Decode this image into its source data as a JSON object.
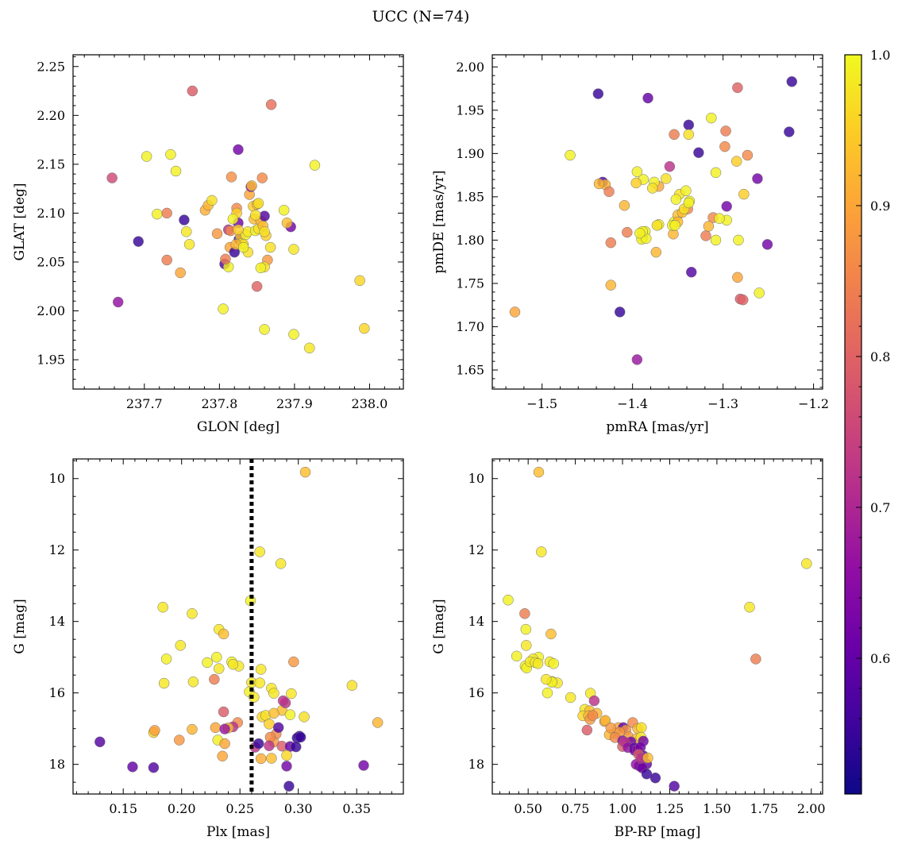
{
  "figure": {
    "title": "UCC (N=74)",
    "colorbar": {
      "min": 0.51,
      "max": 1.0,
      "ticks": [
        0.6,
        0.7,
        0.8,
        0.9,
        1.0
      ],
      "tick_labels": [
        "0.6",
        "0.7",
        "0.8",
        "0.9",
        "1.0"
      ],
      "cmap": "plasma"
    }
  },
  "chart_data": [
    {
      "type": "scatter",
      "xlabel": "GLON [deg]",
      "ylabel": "GLAT [deg]",
      "xlim": [
        237.605,
        238.045
      ],
      "ylim": [
        1.92,
        2.262
      ],
      "invert_y": false,
      "xticks": [
        237.7,
        237.8,
        237.9,
        238.0
      ],
      "xtick_labels": [
        "237.7",
        "237.8",
        "237.9",
        "238.0"
      ],
      "yticks": [
        1.95,
        2.0,
        2.05,
        2.1,
        2.15,
        2.2,
        2.25
      ],
      "ytick_labels": [
        "1.95",
        "2.00",
        "2.05",
        "2.10",
        "2.15",
        "2.20",
        "2.25"
      ],
      "x": [
        237.764,
        237.869,
        237.825,
        237.657,
        237.703,
        237.735,
        237.742,
        237.927,
        237.692,
        237.665,
        237.753,
        237.76,
        237.756,
        237.717,
        237.73,
        237.73,
        237.748,
        237.781,
        237.785,
        237.79,
        237.797,
        237.807,
        237.812,
        237.814,
        237.816,
        237.82,
        237.823,
        237.823,
        237.825,
        237.826,
        237.828,
        237.83,
        237.832,
        237.835,
        237.838,
        237.84,
        237.842,
        237.843,
        237.845,
        237.846,
        237.848,
        237.85,
        237.852,
        237.852,
        237.855,
        237.857,
        237.858,
        237.86,
        237.862,
        237.864,
        237.838,
        237.85,
        237.86,
        237.86,
        237.822,
        237.818,
        237.812,
        237.808,
        237.815,
        237.825,
        237.832,
        237.848,
        237.895,
        237.899,
        237.886,
        237.89,
        237.899,
        237.855,
        237.86,
        237.805,
        237.92,
        237.987,
        237.993,
        237.868
      ],
      "y": [
        2.225,
        2.211,
        2.165,
        2.136,
        2.158,
        2.16,
        2.143,
        2.149,
        2.071,
        2.009,
        2.093,
        2.068,
        2.081,
        2.099,
        2.1,
        2.052,
        2.039,
        2.103,
        2.108,
        2.113,
        2.079,
        2.048,
        2.083,
        2.065,
        2.137,
        2.06,
        2.105,
        2.1,
        2.09,
        2.073,
        2.076,
        2.069,
        2.068,
        2.078,
        2.081,
        2.119,
        2.127,
        2.128,
        2.107,
        2.094,
        2.082,
        2.109,
        2.084,
        2.11,
        2.092,
        2.136,
        2.087,
        2.097,
        2.077,
        2.052,
        2.06,
        2.025,
        2.045,
        2.081,
        2.068,
        2.094,
        2.045,
        2.053,
        2.082,
        2.083,
        2.065,
        2.098,
        2.086,
        2.063,
        2.103,
        2.09,
        1.976,
        2.044,
        1.981,
        2.002,
        1.962,
        2.031,
        1.982,
        2.065
      ],
      "c": [
        0.79,
        0.82,
        0.62,
        0.76,
        0.99,
        0.99,
        0.99,
        0.99,
        0.55,
        0.66,
        0.55,
        0.98,
        0.98,
        0.99,
        0.84,
        0.84,
        0.9,
        0.91,
        0.92,
        0.97,
        0.88,
        0.58,
        0.72,
        0.9,
        0.87,
        0.55,
        0.86,
        0.95,
        0.62,
        0.55,
        0.93,
        0.99,
        0.96,
        0.99,
        0.98,
        0.9,
        0.65,
        0.93,
        0.95,
        0.93,
        0.99,
        0.93,
        0.97,
        0.97,
        0.92,
        0.86,
        0.93,
        0.58,
        0.95,
        0.88,
        0.97,
        0.8,
        0.97,
        0.97,
        0.92,
        0.99,
        0.99,
        0.84,
        0.86,
        0.95,
        0.99,
        0.97,
        0.62,
        0.98,
        0.99,
        0.93,
        0.99,
        0.99,
        0.99,
        0.99,
        0.98,
        0.96,
        0.96,
        0.97
      ]
    },
    {
      "type": "scatter",
      "xlabel": "pmRA [mas/yr]",
      "ylabel": "pmDE [mas/yr]",
      "xlim": [
        -1.555,
        -1.19
      ],
      "ylim": [
        1.628,
        2.014
      ],
      "invert_y": false,
      "xticks": [
        -1.5,
        -1.4,
        -1.3,
        -1.2
      ],
      "xtick_labels": [
        "−1.5",
        "−1.4",
        "−1.3",
        "−1.2"
      ],
      "yticks": [
        1.65,
        1.7,
        1.75,
        1.8,
        1.85,
        1.9,
        1.95,
        2.0
      ],
      "ytick_labels": [
        "1.65",
        "1.70",
        "1.75",
        "1.80",
        "1.85",
        "1.90",
        "1.95",
        "2.00"
      ],
      "x": [
        -1.438,
        -1.383,
        -1.284,
        -1.224,
        -1.338,
        -1.313,
        -1.354,
        -1.338,
        -1.327,
        -1.297,
        -1.227,
        -1.433,
        -1.298,
        -1.273,
        -1.469,
        -1.43,
        -1.285,
        -1.359,
        -1.371,
        -1.388,
        -1.395,
        -1.363,
        -1.376,
        -1.348,
        -1.341,
        -1.339,
        -1.262,
        -1.308,
        -1.296,
        -1.277,
        -1.396,
        -1.437,
        -1.426,
        -1.409,
        -1.378,
        -1.352,
        -1.354,
        -1.371,
        -1.373,
        -1.386,
        -1.389,
        -1.39,
        -1.355,
        -1.35,
        -1.311,
        -1.308,
        -1.296,
        -1.304,
        -1.319,
        -1.316,
        -1.345,
        -1.343,
        -1.337,
        -1.338,
        -1.35,
        -1.283,
        -1.251,
        -1.424,
        -1.374,
        -1.406,
        -1.385,
        -1.389,
        -1.392,
        -1.356,
        -1.353,
        -1.335,
        -1.424,
        -1.284,
        -1.281,
        -1.278,
        -1.26,
        -1.414,
        -1.53,
        -1.395
      ],
      "y": [
        1.969,
        1.964,
        1.976,
        1.983,
        1.933,
        1.941,
        1.922,
        1.922,
        1.901,
        1.926,
        1.925,
        1.867,
        1.908,
        1.898,
        1.898,
        1.864,
        1.891,
        1.885,
        1.862,
        1.87,
        1.879,
        1.871,
        1.867,
        1.853,
        1.857,
        1.836,
        1.871,
        1.878,
        1.839,
        1.853,
        1.866,
        1.865,
        1.856,
        1.84,
        1.86,
        1.847,
        1.821,
        1.818,
        1.817,
        1.81,
        1.803,
        1.801,
        1.807,
        1.829,
        1.826,
        1.8,
        1.823,
        1.825,
        1.805,
        1.816,
        1.832,
        1.836,
        1.845,
        1.843,
        1.821,
        1.8,
        1.795,
        1.797,
        1.786,
        1.809,
        1.802,
        1.81,
        1.808,
        1.817,
        1.817,
        1.763,
        1.748,
        1.757,
        1.732,
        1.731,
        1.739,
        1.717,
        1.717,
        1.662
      ],
      "c": [
        0.55,
        0.6,
        0.8,
        0.55,
        0.55,
        0.99,
        0.84,
        0.97,
        0.55,
        0.84,
        0.55,
        0.58,
        0.86,
        0.86,
        0.99,
        0.92,
        0.95,
        0.72,
        0.9,
        0.99,
        0.99,
        0.97,
        0.99,
        0.97,
        0.99,
        0.86,
        0.62,
        0.99,
        0.62,
        0.95,
        0.95,
        0.92,
        0.84,
        0.92,
        0.97,
        0.99,
        0.99,
        0.99,
        0.97,
        0.99,
        0.99,
        0.99,
        0.92,
        0.93,
        0.86,
        0.99,
        0.99,
        0.99,
        0.84,
        0.92,
        0.93,
        0.97,
        0.99,
        0.99,
        0.93,
        0.99,
        0.62,
        0.84,
        0.92,
        0.84,
        0.99,
        0.99,
        0.99,
        0.99,
        0.99,
        0.58,
        0.92,
        0.9,
        0.79,
        0.8,
        0.99,
        0.55,
        0.9,
        0.67
      ]
    },
    {
      "type": "scatter",
      "xlabel": "Plx [mas]",
      "ylabel": "G [mag]",
      "xlim": [
        0.107,
        0.39
      ],
      "ylim": [
        18.83,
        9.45
      ],
      "invert_y": true,
      "vline": 0.26,
      "xticks": [
        0.15,
        0.2,
        0.25,
        0.3,
        0.35
      ],
      "xtick_labels": [
        "0.15",
        "0.20",
        "0.25",
        "0.30",
        "0.35"
      ],
      "yticks": [
        10,
        12,
        14,
        16,
        18
      ],
      "ytick_labels": [
        "10",
        "12",
        "14",
        "16",
        "18"
      ],
      "x": [
        0.306,
        0.267,
        0.285,
        0.259,
        0.184,
        0.209,
        0.232,
        0.236,
        0.199,
        0.23,
        0.187,
        0.296,
        0.222,
        0.185,
        0.21,
        0.228,
        0.232,
        0.243,
        0.249,
        0.244,
        0.26,
        0.268,
        0.258,
        0.267,
        0.277,
        0.279,
        0.248,
        0.305,
        0.294,
        0.346,
        0.236,
        0.269,
        0.272,
        0.275,
        0.286,
        0.289,
        0.293,
        0.301,
        0.299,
        0.302,
        0.368,
        0.244,
        0.24,
        0.229,
        0.237,
        0.209,
        0.231,
        0.176,
        0.177,
        0.198,
        0.237,
        0.263,
        0.266,
        0.281,
        0.279,
        0.276,
        0.286,
        0.275,
        0.293,
        0.29,
        0.277,
        0.298,
        0.13,
        0.235,
        0.268,
        0.262,
        0.279,
        0.287,
        0.283,
        0.29,
        0.158,
        0.176,
        0.356,
        0.292
      ],
      "y": [
        9.82,
        12.05,
        12.38,
        13.42,
        13.6,
        13.78,
        14.22,
        14.35,
        14.67,
        15.0,
        15.05,
        15.13,
        15.15,
        15.73,
        15.69,
        15.62,
        15.32,
        15.13,
        15.25,
        15.2,
        15.71,
        15.34,
        15.97,
        15.72,
        15.87,
        16.01,
        16.83,
        16.67,
        16.02,
        15.79,
        16.53,
        16.67,
        16.63,
        16.87,
        16.49,
        16.28,
        16.61,
        17.21,
        17.26,
        17.24,
        16.83,
        16.95,
        16.98,
        16.97,
        17.01,
        17.02,
        17.32,
        17.11,
        17.05,
        17.32,
        17.42,
        17.52,
        17.42,
        17.15,
        17.37,
        17.24,
        17.49,
        17.48,
        17.5,
        17.75,
        17.83,
        17.51,
        17.37,
        17.77,
        17.84,
        16.12,
        16.57,
        16.22,
        16.97,
        18.05,
        18.07,
        18.09,
        18.03,
        18.61
      ],
      "c": [
        0.93,
        0.98,
        0.98,
        0.99,
        0.98,
        0.98,
        0.98,
        0.93,
        0.98,
        0.99,
        0.99,
        0.88,
        0.99,
        0.98,
        0.98,
        0.84,
        0.98,
        0.99,
        0.98,
        0.98,
        0.98,
        0.98,
        0.99,
        0.98,
        0.98,
        0.98,
        0.86,
        0.97,
        0.98,
        0.97,
        0.79,
        0.96,
        0.97,
        0.95,
        0.93,
        0.72,
        0.99,
        0.55,
        0.55,
        0.55,
        0.92,
        0.72,
        0.93,
        0.9,
        0.67,
        0.92,
        0.99,
        0.96,
        0.89,
        0.88,
        0.9,
        0.72,
        0.55,
        0.86,
        0.88,
        0.86,
        0.79,
        0.72,
        0.6,
        0.96,
        0.93,
        0.55,
        0.58,
        0.9,
        0.91,
        0.98,
        0.93,
        0.72,
        0.58,
        0.62,
        0.6,
        0.58,
        0.62,
        0.55
      ]
    },
    {
      "type": "scatter",
      "xlabel": "BP-RP [mag]",
      "ylabel": "G [mag]",
      "xlim": [
        0.31,
        2.06
      ],
      "ylim": [
        18.83,
        9.45
      ],
      "invert_y": true,
      "xticks": [
        0.5,
        0.75,
        1.0,
        1.25,
        1.5,
        1.75,
        2.0
      ],
      "xtick_labels": [
        "0.50",
        "0.75",
        "1.00",
        "1.25",
        "1.50",
        "1.75",
        "2.00"
      ],
      "yticks": [
        10,
        12,
        14,
        16,
        18
      ],
      "ytick_labels": [
        "10",
        "12",
        "14",
        "16",
        "18"
      ],
      "x": [
        0.556,
        0.57,
        1.975,
        0.394,
        1.673,
        0.482,
        0.488,
        0.621,
        0.49,
        1.706,
        0.439,
        0.555,
        0.526,
        0.615,
        0.635,
        0.484,
        0.492,
        0.51,
        0.538,
        0.552,
        0.628,
        0.655,
        0.626,
        0.595,
        0.602,
        0.725,
        0.8,
        0.825,
        0.864,
        0.905,
        0.79,
        0.82,
        0.828,
        0.842,
        0.909,
        0.978,
        1.004,
        1.054,
        1.08,
        1.1,
        1.018,
        0.96,
        0.985,
        1.033,
        1.075,
        1.098,
        0.93,
        0.96,
        1.0,
        1.045,
        1.11,
        1.0,
        1.012,
        1.029,
        1.062,
        1.064,
        1.078,
        1.095,
        1.11,
        1.128,
        1.088,
        1.092,
        1.072,
        1.104,
        1.128,
        1.085,
        1.098,
        1.134,
        1.174,
        0.83,
        0.85,
        0.812,
        0.938,
        1.274
      ],
      "y": [
        9.82,
        12.05,
        12.38,
        13.4,
        13.6,
        13.78,
        14.22,
        14.35,
        14.67,
        15.05,
        14.97,
        15.0,
        15.05,
        15.13,
        15.18,
        15.25,
        15.3,
        15.13,
        15.15,
        15.18,
        15.68,
        15.72,
        15.7,
        15.62,
        16.0,
        16.13,
        16.46,
        16.5,
        16.57,
        16.8,
        16.64,
        16.64,
        16.74,
        16.63,
        16.77,
        16.97,
        16.97,
        16.83,
        17.0,
        16.97,
        17.04,
        17.13,
        17.1,
        17.23,
        17.28,
        17.24,
        17.17,
        17.25,
        17.34,
        17.37,
        17.35,
        17.5,
        17.38,
        17.53,
        17.54,
        17.61,
        17.59,
        17.52,
        17.76,
        17.99,
        18.04,
        18.05,
        18.0,
        18.1,
        18.27,
        17.72,
        17.83,
        17.82,
        18.38,
        16.01,
        16.22,
        17.04,
        16.98,
        18.61
      ],
      "c": [
        0.93,
        0.98,
        0.98,
        0.99,
        0.98,
        0.84,
        0.99,
        0.93,
        0.98,
        0.84,
        0.99,
        0.99,
        0.98,
        0.98,
        0.99,
        0.99,
        0.99,
        0.98,
        0.99,
        0.98,
        0.98,
        0.98,
        0.99,
        0.98,
        0.99,
        0.98,
        0.98,
        0.93,
        0.92,
        0.9,
        0.96,
        0.92,
        0.88,
        0.86,
        0.92,
        0.9,
        0.6,
        0.86,
        0.92,
        0.97,
        0.88,
        0.93,
        0.88,
        0.88,
        0.93,
        0.98,
        0.92,
        0.86,
        0.66,
        0.62,
        0.62,
        0.79,
        0.72,
        0.66,
        0.6,
        0.62,
        0.65,
        0.62,
        0.58,
        0.6,
        0.62,
        0.6,
        0.66,
        0.62,
        0.55,
        0.79,
        0.72,
        0.93,
        0.55,
        0.98,
        0.72,
        0.79,
        0.88,
        0.58
      ]
    }
  ]
}
